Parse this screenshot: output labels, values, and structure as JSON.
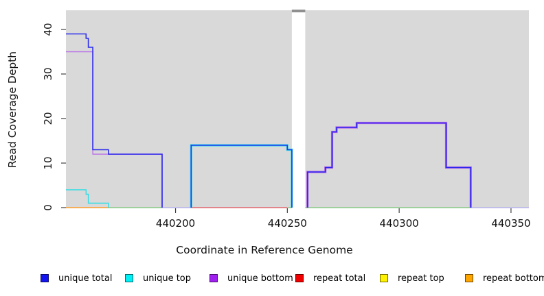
{
  "figure": {
    "xlabel": "Coordinate in Reference Genome",
    "ylabel": "Read Coverage Depth"
  },
  "legend": {
    "items": [
      {
        "label": "unique total",
        "color": "#1414f0"
      },
      {
        "label": "unique top",
        "color": "#00f0f5"
      },
      {
        "label": "unique bottom",
        "color": "#a020f0"
      },
      {
        "label": "repeat total",
        "color": "#ee0000"
      },
      {
        "label": "repeat top",
        "color": "#fff200"
      },
      {
        "label": "repeat bottom",
        "color": "#ffa500"
      }
    ]
  },
  "chart_data": {
    "type": "line",
    "style": "step-coverage",
    "title": "",
    "xlabel": "Coordinate in Reference Genome",
    "ylabel": "Read Coverage Depth",
    "xlim": [
      440151,
      440358
    ],
    "ylim": [
      0,
      44
    ],
    "x_ticks": [
      440200,
      440250,
      440300,
      440350
    ],
    "y_ticks": [
      0,
      10,
      20,
      30,
      40
    ],
    "panel_background": "#d9d9d9",
    "grid": false,
    "legend_position": "bottom",
    "gap_band": {
      "x0": 440252,
      "x1": 440258,
      "color": "#ffffff",
      "cap_color": "#8f8f8f"
    },
    "baseline_segments": [
      {
        "name": "repeat-bottom-zero",
        "color": "#ff9f2e",
        "x0": 440151,
        "x1": 440170
      },
      {
        "name": "top-overlap-zero",
        "color": "#8bce8b",
        "x0": 440170,
        "x1": 440194
      },
      {
        "name": "unique-zero",
        "color": "#b9b6f0",
        "x0": 440194,
        "x1": 440207
      },
      {
        "name": "repeat-total-zero",
        "color": "#e66973",
        "x0": 440207,
        "x1": 440250
      },
      {
        "name": "top-overlap-zero",
        "color": "#8bce8b",
        "x0": 440250,
        "x1": 440252
      },
      {
        "name": "top-overlap-zero",
        "color": "#8bce8b",
        "x0": 440258,
        "x1": 440332
      },
      {
        "name": "unique-zero",
        "color": "#b9b6f0",
        "x0": 440332,
        "x1": 440358
      }
    ],
    "series": [
      {
        "name": "unique top",
        "color": "#00dde8",
        "segments": [
          {
            "width": 1.4,
            "opacity": 0.8,
            "points": [
              [
                440151,
                4
              ],
              [
                440160,
                4
              ],
              [
                440160,
                3
              ],
              [
                440161,
                3
              ],
              [
                440161,
                1
              ],
              [
                440170,
                1
              ],
              [
                440170,
                0
              ]
            ]
          },
          {
            "width": 3.2,
            "opacity": 0.75,
            "points": [
              [
                440207,
                0
              ],
              [
                440207,
                14
              ],
              [
                440250,
                14
              ],
              [
                440250,
                13
              ],
              [
                440252,
                13
              ],
              [
                440252,
                0
              ]
            ]
          }
        ]
      },
      {
        "name": "unique bottom",
        "color": "#a020f0",
        "segments": [
          {
            "width": 1.4,
            "opacity": 0.55,
            "points": [
              [
                440151,
                35
              ],
              [
                440163,
                35
              ],
              [
                440163,
                12
              ],
              [
                440194,
                12
              ],
              [
                440194,
                0
              ]
            ]
          },
          {
            "width": 3.2,
            "opacity": 0.6,
            "points": [
              [
                440259,
                0
              ],
              [
                440259,
                8
              ],
              [
                440267,
                8
              ],
              [
                440267,
                9
              ],
              [
                440270,
                9
              ],
              [
                440270,
                17
              ],
              [
                440272,
                17
              ],
              [
                440272,
                18
              ],
              [
                440281,
                18
              ],
              [
                440281,
                19
              ],
              [
                440321,
                19
              ],
              [
                440321,
                9
              ],
              [
                440332,
                9
              ],
              [
                440332,
                0
              ]
            ]
          }
        ]
      },
      {
        "name": "unique total",
        "color": "#2222ee",
        "segments": [
          {
            "width": 1.6,
            "opacity": 0.95,
            "points": [
              [
                440151,
                39
              ],
              [
                440160,
                39
              ],
              [
                440160,
                38
              ],
              [
                440161,
                38
              ],
              [
                440161,
                36
              ],
              [
                440163,
                36
              ],
              [
                440163,
                13
              ],
              [
                440170,
                13
              ],
              [
                440170,
                12
              ],
              [
                440194,
                12
              ],
              [
                440194,
                0
              ]
            ]
          },
          {
            "width": 1.6,
            "opacity": 0.9,
            "points": [
              [
                440207,
                0
              ],
              [
                440207,
                14
              ],
              [
                440250,
                14
              ],
              [
                440250,
                13
              ],
              [
                440252,
                13
              ],
              [
                440252,
                0
              ]
            ]
          },
          {
            "width": 1.6,
            "opacity": 0.95,
            "points": [
              [
                440259,
                0
              ],
              [
                440259,
                8
              ],
              [
                440267,
                8
              ],
              [
                440267,
                9
              ],
              [
                440270,
                9
              ],
              [
                440270,
                17
              ],
              [
                440272,
                17
              ],
              [
                440272,
                18
              ],
              [
                440281,
                18
              ],
              [
                440281,
                19
              ],
              [
                440321,
                19
              ],
              [
                440321,
                9
              ],
              [
                440332,
                9
              ],
              [
                440332,
                0
              ]
            ]
          }
        ]
      }
    ]
  }
}
